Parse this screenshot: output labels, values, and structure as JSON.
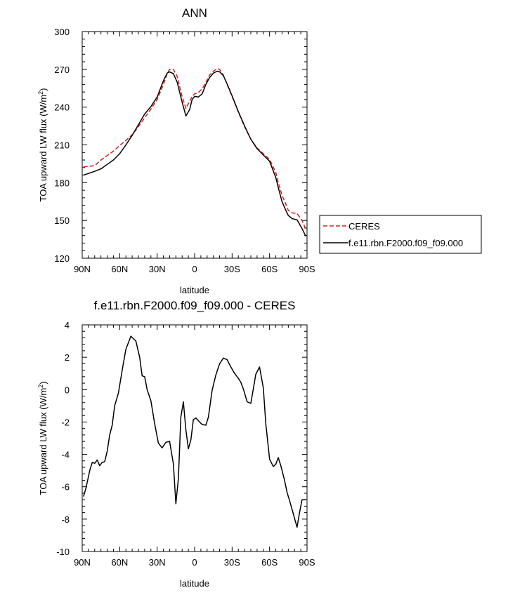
{
  "chart_data": [
    {
      "type": "line",
      "title": "ANN",
      "xlabel": "latitude",
      "ylabel": "TOA upward LW flux (W/m",
      "ylabel_sup": "2",
      "ylabel_close": ")",
      "xlim": [
        90,
        -90
      ],
      "ylim": [
        120,
        300
      ],
      "x_ticks": [
        {
          "value": 90,
          "label": "90N"
        },
        {
          "value": 60,
          "label": "60N"
        },
        {
          "value": 30,
          "label": "30N"
        },
        {
          "value": 0,
          "label": "0"
        },
        {
          "value": -30,
          "label": "30S"
        },
        {
          "value": -60,
          "label": "60S"
        },
        {
          "value": -90,
          "label": "90S"
        }
      ],
      "y_ticks": [
        120,
        150,
        180,
        210,
        240,
        270,
        300
      ],
      "legend": {
        "placement": "right",
        "entries": [
          "CERES",
          "f.e11.rbn.F2000.f09_f09.000"
        ]
      },
      "series": [
        {
          "name": "CERES",
          "color": "#e0191a",
          "dash": true,
          "x": [
            89,
            80,
            75,
            70,
            65,
            60,
            55,
            50,
            45,
            40,
            35,
            30,
            25,
            22,
            20,
            17,
            14,
            10,
            7,
            4,
            2,
            0,
            -3,
            -6,
            -9,
            -12,
            -15,
            -18,
            -20,
            -23,
            -26,
            -30,
            -35,
            -40,
            -45,
            -50,
            -55,
            -60,
            -65,
            -67,
            -70,
            -73,
            -75,
            -78,
            -82,
            -86,
            -89
          ],
          "y": [
            192.5,
            193.5,
            198,
            201.5,
            205,
            209.5,
            213.5,
            218,
            224.5,
            231.5,
            238.5,
            246,
            258,
            266.5,
            270,
            270,
            264.5,
            248.5,
            239,
            244.5,
            248.5,
            250.5,
            251.5,
            254.5,
            259.5,
            265.5,
            268.5,
            270.5,
            270,
            265.5,
            258,
            248.5,
            236,
            224.5,
            214.5,
            207.5,
            203,
            198.5,
            188,
            180,
            170,
            163,
            158,
            156,
            155.5,
            150,
            143
          ]
        },
        {
          "name": "f.e11.rbn.F2000.f09_f09.000",
          "color": "#000000",
          "dash": false,
          "x": [
            89,
            80,
            75,
            70,
            65,
            60,
            55,
            50,
            45,
            40,
            35,
            30,
            25,
            22,
            20,
            17,
            14,
            10,
            7,
            4,
            2,
            0,
            -3,
            -6,
            -9,
            -12,
            -15,
            -18,
            -20,
            -23,
            -26,
            -30,
            -35,
            -40,
            -45,
            -50,
            -55,
            -60,
            -65,
            -67,
            -70,
            -73,
            -75,
            -78,
            -82,
            -86,
            -89
          ],
          "y": [
            186,
            189,
            191,
            194.5,
            198,
            203,
            210,
            217.5,
            226,
            234.5,
            240.5,
            248,
            261,
            267,
            268,
            266.5,
            260,
            244,
            233,
            238,
            246,
            248.5,
            248,
            250.5,
            258,
            263.5,
            267,
            268.5,
            268,
            265,
            258.5,
            249,
            236.5,
            225,
            214.5,
            207,
            202,
            197,
            184,
            176,
            165,
            158,
            154,
            151.5,
            150.5,
            143.5,
            137.5
          ]
        }
      ]
    },
    {
      "type": "line",
      "title": "f.e11.rbn.F2000.f09_f09.000 - CERES",
      "xlabel": "latitude",
      "ylabel": "TOA upward LW flux (W/m",
      "ylabel_sup": "2",
      "ylabel_close": ")",
      "xlim": [
        90,
        -90
      ],
      "ylim": [
        -10,
        4
      ],
      "x_ticks": [
        {
          "value": 90,
          "label": "90N"
        },
        {
          "value": 60,
          "label": "60N"
        },
        {
          "value": 30,
          "label": "30N"
        },
        {
          "value": 0,
          "label": "0"
        },
        {
          "value": -30,
          "label": "30S"
        },
        {
          "value": -60,
          "label": "60S"
        },
        {
          "value": -90,
          "label": "90S"
        }
      ],
      "y_ticks": [
        -10,
        -8,
        -6,
        -4,
        -2,
        0,
        2,
        4
      ],
      "series": [
        {
          "color": "#000000",
          "dash": false,
          "x": [
            89,
            87,
            84,
            82,
            80,
            78,
            76,
            74,
            72,
            70,
            68,
            66,
            64,
            61,
            58,
            55,
            51,
            47,
            44,
            42,
            40,
            38,
            35,
            32,
            29,
            26,
            23,
            20,
            17,
            15,
            13,
            11,
            9,
            7,
            5,
            3,
            1,
            -1,
            -4,
            -6,
            -9,
            -11,
            -14,
            -17,
            -20,
            -23,
            -26,
            -29,
            -32,
            -35,
            -37,
            -39,
            -42,
            -45,
            -49,
            -52,
            -55,
            -57,
            -60,
            -63,
            -65,
            -67,
            -69,
            -71,
            -72,
            -74,
            -76,
            -78,
            -80,
            -82,
            -84,
            -86,
            -88,
            -89
          ],
          "y": [
            -6.6,
            -6.1,
            -5.0,
            -4.5,
            -4.55,
            -4.35,
            -4.7,
            -4.5,
            -4.45,
            -3.8,
            -2.8,
            -2.2,
            -1.0,
            -0.2,
            1.2,
            2.5,
            3.3,
            3.0,
            2.0,
            0.85,
            0.8,
            0.0,
            -0.7,
            -2.1,
            -3.3,
            -3.6,
            -3.25,
            -3.2,
            -4.6,
            -7.05,
            -5.5,
            -1.7,
            -0.75,
            -2.5,
            -3.65,
            -3.1,
            -1.85,
            -1.75,
            -2.0,
            -2.15,
            -2.2,
            -1.7,
            -0.05,
            0.9,
            1.6,
            1.95,
            1.85,
            1.4,
            1.0,
            0.7,
            0.45,
            0.05,
            -0.75,
            -0.85,
            0.95,
            1.4,
            0.1,
            -2.1,
            -4.3,
            -4.75,
            -4.6,
            -4.2,
            -4.7,
            -5.3,
            -5.6,
            -6.35,
            -6.85,
            -7.4,
            -7.95,
            -8.5,
            -7.6,
            -6.8,
            -6.8,
            -6.8
          ]
        }
      ]
    }
  ]
}
